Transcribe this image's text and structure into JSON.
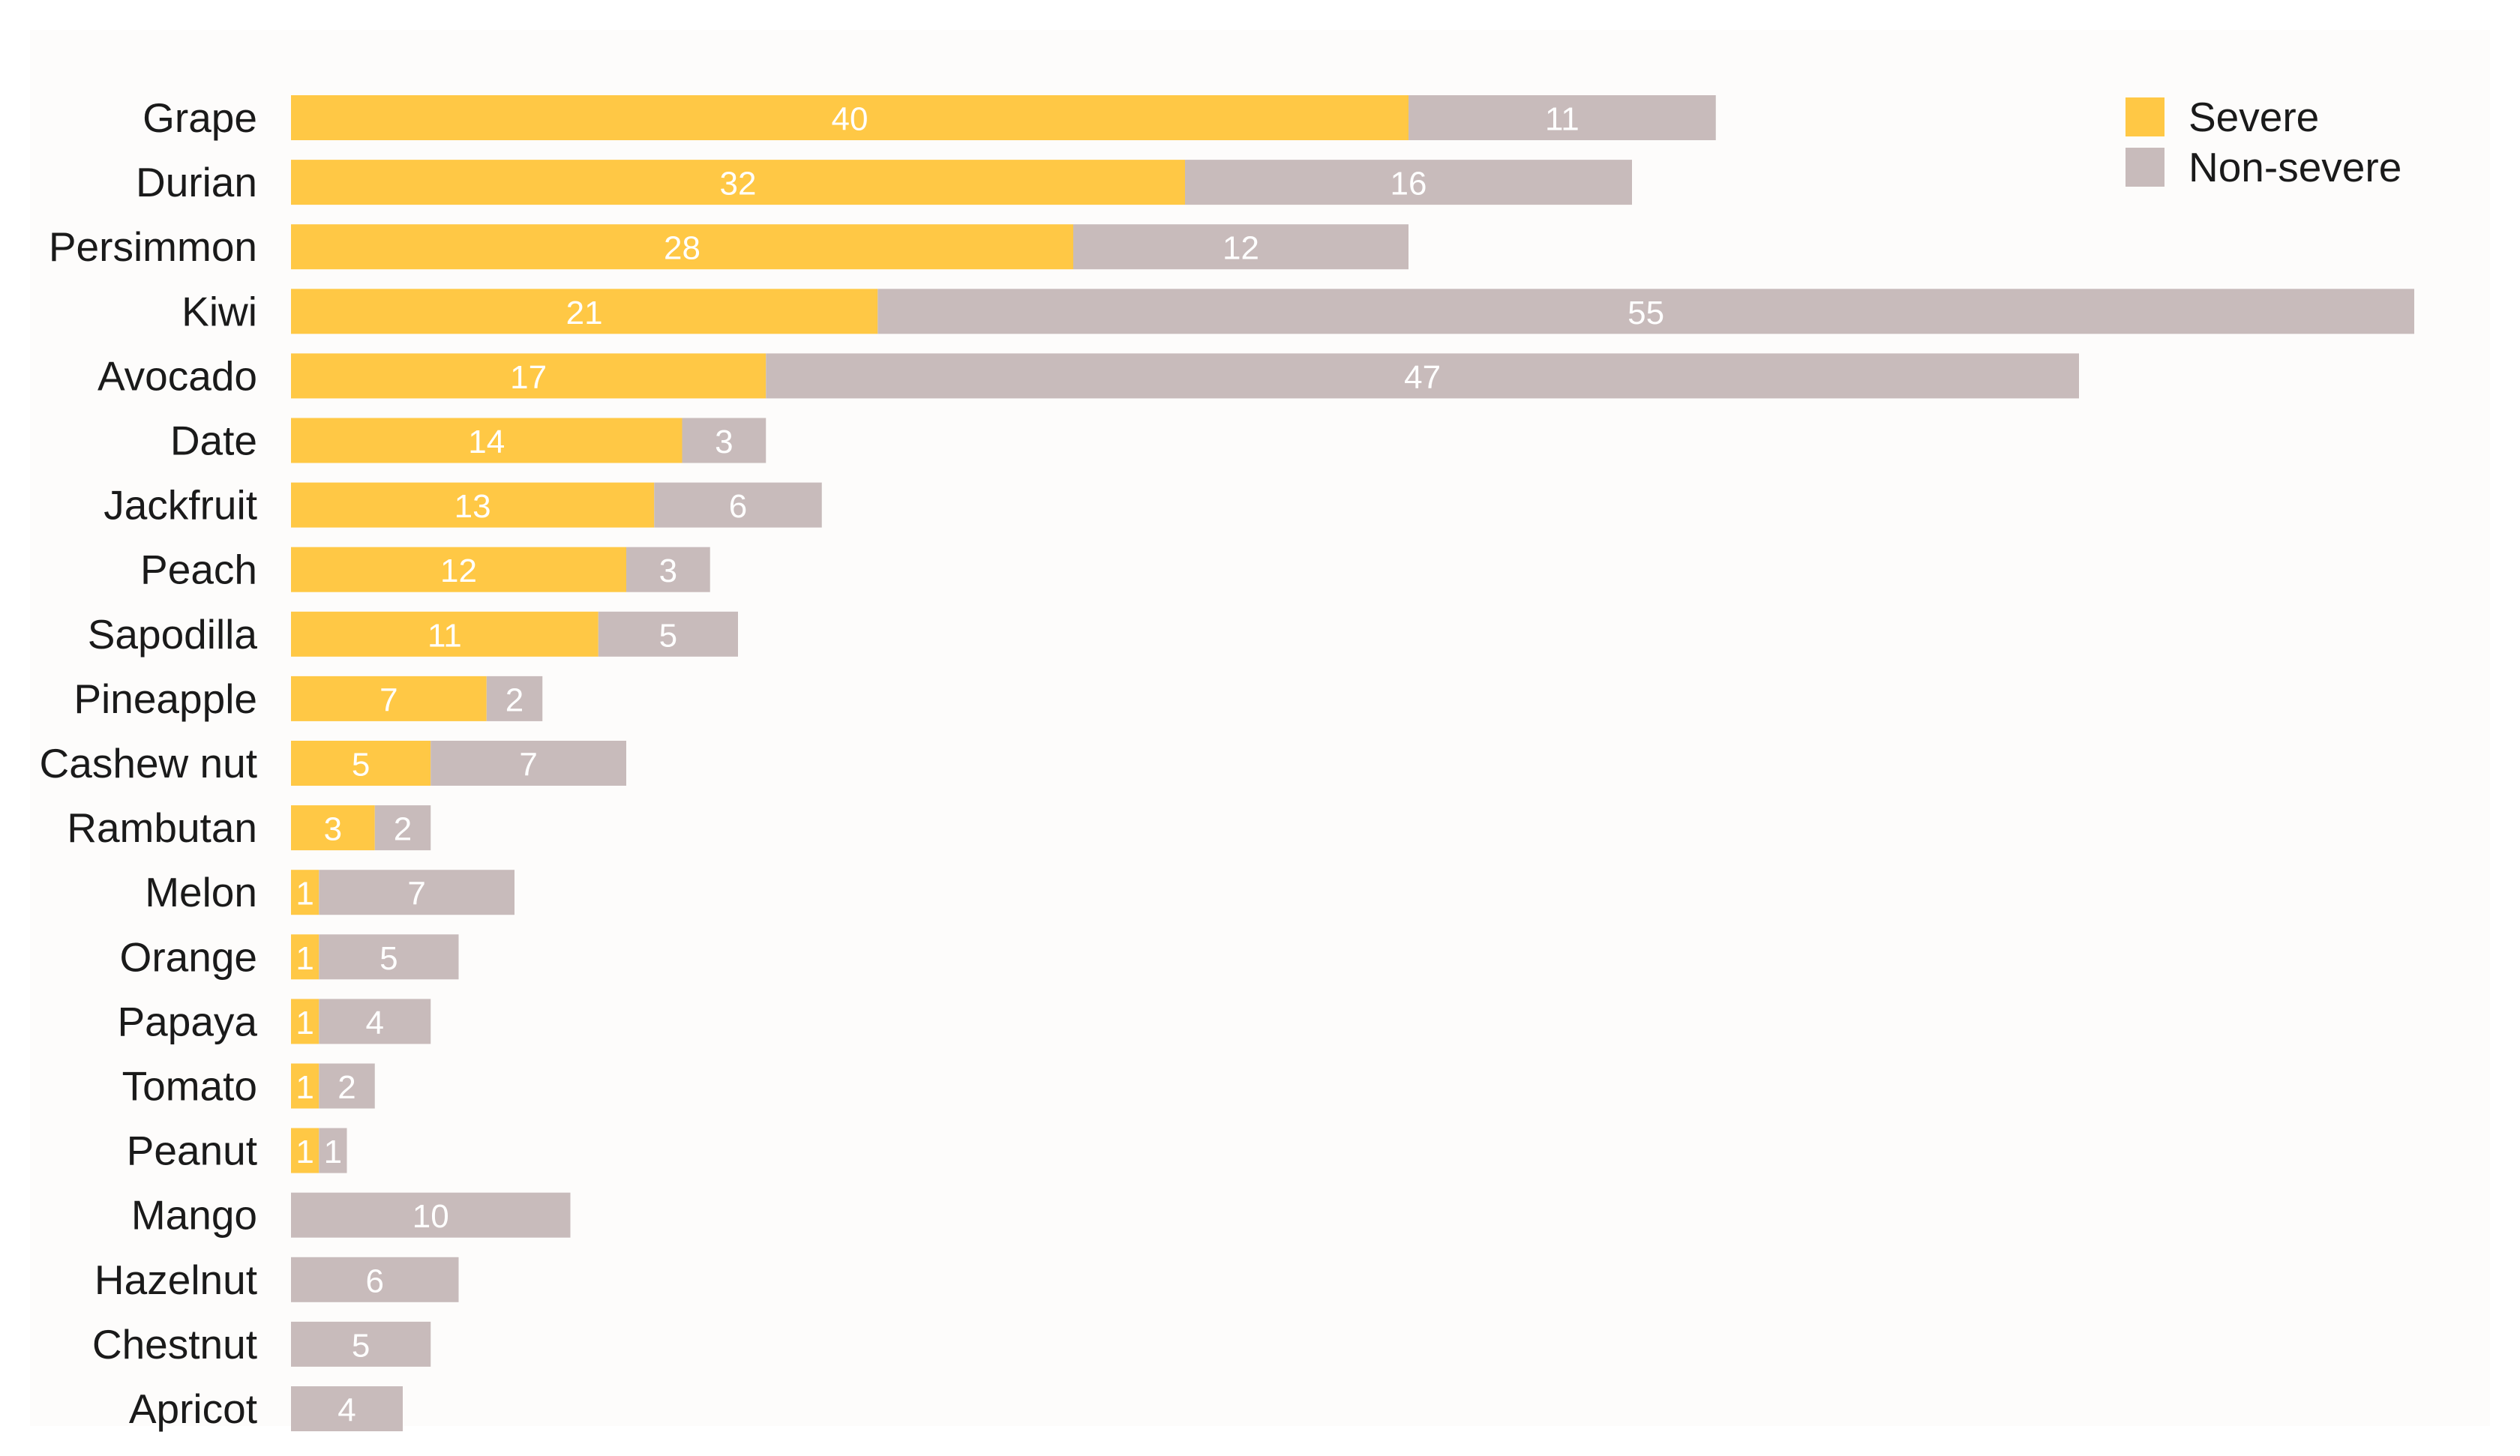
{
  "chart_data": {
    "type": "bar",
    "orientation": "horizontal",
    "stacked": true,
    "categories": [
      "Grape",
      "Durian",
      "Persimmon",
      "Kiwi",
      "Avocado",
      "Date",
      "Jackfruit",
      "Peach",
      "Sapodilla",
      "Pineapple",
      "Cashew nut",
      "Rambutan",
      "Melon",
      "Orange",
      "Papaya",
      "Tomato",
      "Peanut",
      "Mango",
      "Hazelnut",
      "Chestnut",
      "Apricot"
    ],
    "series": [
      {
        "name": "Severe",
        "color": "#ffc845",
        "values": [
          40,
          32,
          28,
          21,
          17,
          14,
          13,
          12,
          11,
          7,
          5,
          3,
          1,
          1,
          1,
          1,
          1,
          0,
          0,
          0,
          0
        ]
      },
      {
        "name": "Non-severe",
        "color": "#c8bbbb",
        "values": [
          11,
          16,
          12,
          55,
          47,
          3,
          6,
          3,
          5,
          2,
          7,
          2,
          7,
          5,
          4,
          2,
          1,
          10,
          6,
          5,
          4
        ]
      }
    ],
    "title": "",
    "xlabel": "",
    "ylabel": "",
    "xlim": [
      0,
      76
    ],
    "grid": false,
    "legend_position": "top-right"
  }
}
